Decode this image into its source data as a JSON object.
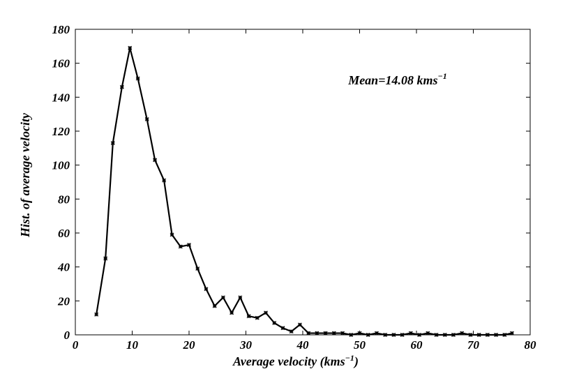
{
  "chart_data": {
    "type": "line",
    "xlabel": "Average velocity (kms",
    "xlabel_sup": "−1",
    "xlabel_tail": ")",
    "ylabel": "Hist. of average velocity",
    "xlim": [
      0,
      80
    ],
    "ylim": [
      0,
      180
    ],
    "xticks": [
      0,
      10,
      20,
      30,
      40,
      50,
      60,
      70,
      80
    ],
    "yticks": [
      0,
      20,
      40,
      60,
      80,
      100,
      120,
      140,
      160,
      180
    ],
    "grid": false,
    "annotation": {
      "text": "Mean=14.08 kms",
      "sup": "−1",
      "x": 48,
      "y": 150
    },
    "line_color": "#000000",
    "marker": "x",
    "series": [
      {
        "x": [
          3.7,
          5.3,
          6.6,
          8.2,
          9.6,
          11.0,
          12.6,
          14.0,
          15.6,
          17.0,
          18.5,
          20.0,
          21.5,
          23.0,
          24.5,
          26.0,
          27.5,
          29.0,
          30.5,
          32.0,
          33.5,
          35.0,
          36.5,
          38.0,
          39.5,
          41.0,
          42.5,
          44.0,
          45.5,
          47.0,
          48.5,
          50.0,
          51.5,
          53.0,
          54.5,
          56.0,
          57.5,
          59.0,
          60.5,
          62.0,
          63.5,
          65.0,
          66.5,
          68.0,
          69.5,
          71.0,
          72.5,
          74.0,
          75.5,
          76.8
        ],
        "values": [
          12,
          45,
          113,
          146,
          169,
          151,
          127,
          103,
          91,
          59,
          52,
          53,
          39,
          27,
          17,
          22,
          13,
          22,
          11,
          10,
          13,
          7,
          4,
          2,
          6,
          1,
          1,
          1,
          1,
          1,
          0,
          1,
          0,
          1,
          0,
          0,
          0,
          1,
          0,
          1,
          0,
          0,
          0,
          1,
          0,
          0,
          0,
          0,
          0,
          1
        ]
      }
    ]
  }
}
